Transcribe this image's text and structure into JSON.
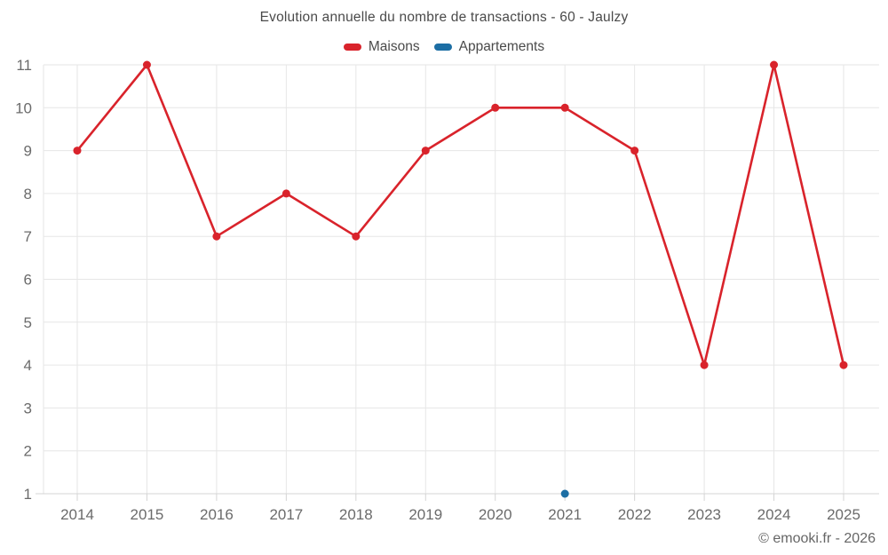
{
  "title": "Evolution annuelle du nombre de transactions - 60 - Jaulzy",
  "footer": "© emooki.fr - 2026",
  "colors": {
    "maisons": "#d9232b",
    "appartements": "#1c6ea4",
    "gridline": "#e6e6e6",
    "axis_line": "#d4d4d4",
    "title_text": "#4a4a4a",
    "axis_text": "#6b6b6b",
    "footer_text": "#666666",
    "background": "#ffffff"
  },
  "legend": {
    "items": [
      {
        "label": "Maisons",
        "color": "#d9232b"
      },
      {
        "label": "Appartements",
        "color": "#1c6ea4"
      }
    ]
  },
  "chart_data": {
    "type": "line",
    "title": "Evolution annuelle du nombre de transactions - 60 - Jaulzy",
    "xlabel": "",
    "ylabel": "",
    "categories": [
      "2014",
      "2015",
      "2016",
      "2017",
      "2018",
      "2019",
      "2020",
      "2021",
      "2022",
      "2023",
      "2024",
      "2025"
    ],
    "series": [
      {
        "name": "Maisons",
        "color": "#d9232b",
        "values": [
          9,
          11,
          7,
          8,
          7,
          9,
          10,
          10,
          9,
          4,
          11,
          4
        ]
      },
      {
        "name": "Appartements",
        "color": "#1c6ea4",
        "values": [
          null,
          null,
          null,
          null,
          null,
          null,
          null,
          1,
          null,
          null,
          null,
          null
        ]
      }
    ],
    "ylim": [
      1,
      11
    ],
    "yticks": [
      1,
      2,
      3,
      4,
      5,
      6,
      7,
      8,
      9,
      10,
      11
    ],
    "grid": true,
    "legend_position": "top"
  }
}
